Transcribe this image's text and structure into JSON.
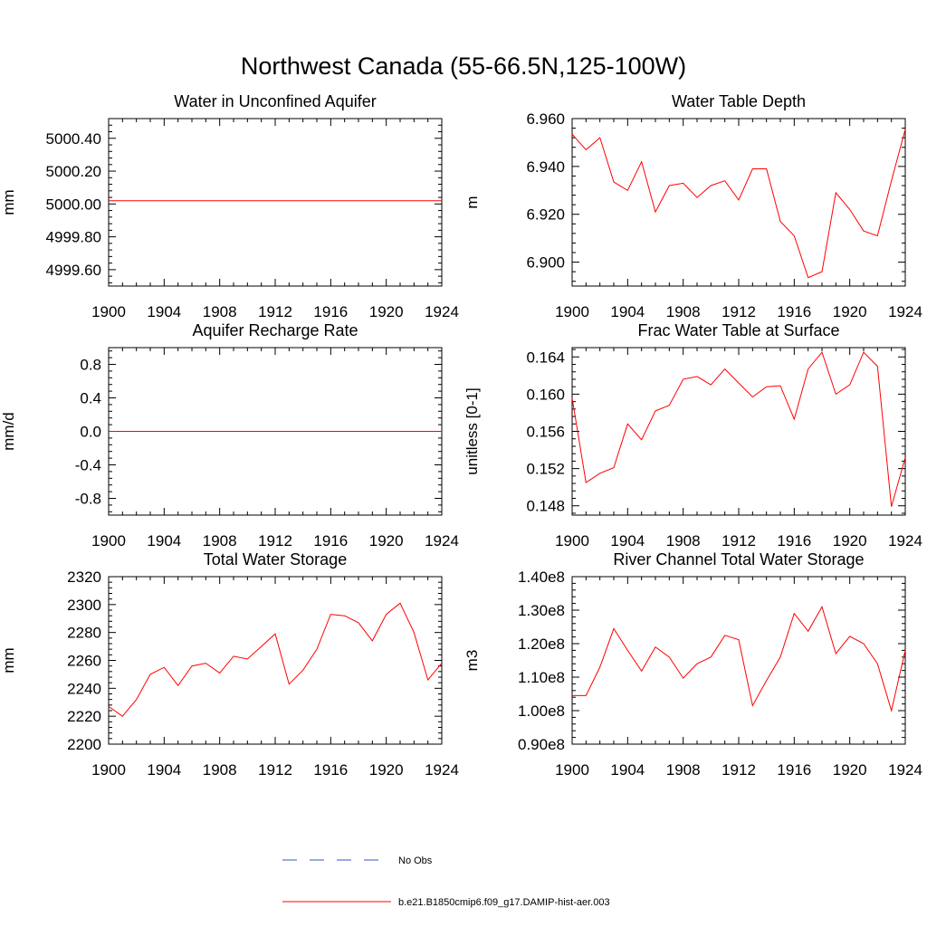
{
  "main_title": "Northwest Canada (55-66.5N,125-100W)",
  "colors": {
    "model": "#ff0000",
    "obs": "#3355cc",
    "frame": "#000000"
  },
  "legend": {
    "obs_label": "No Obs",
    "model_label": "b.e21.B1850cmip6.f09_g17.DAMIP-hist-aer.003"
  },
  "chart_data": [
    {
      "type": "line",
      "title": "Water in Unconfined Aquifer",
      "ylabel": "mm",
      "xlim": [
        1900,
        1924
      ],
      "ylim": [
        4999.5,
        5000.52
      ],
      "x_ticks": [
        1900,
        1904,
        1908,
        1912,
        1916,
        1920,
        1924
      ],
      "x_tick_labels": [
        "1900",
        "1904",
        "1908",
        "1912",
        "1916",
        "1920",
        "1924"
      ],
      "y_ticks": [
        4999.6,
        4999.8,
        5000.0,
        5000.2,
        5000.4
      ],
      "y_tick_labels": [
        "4999.60",
        "4999.80",
        "5000.00",
        "5000.20",
        "5000.40"
      ],
      "series": [
        {
          "x": [
            1900,
            1901,
            1902,
            1903,
            1904,
            1905,
            1906,
            1907,
            1908,
            1909,
            1910,
            1911,
            1912,
            1913,
            1914,
            1915,
            1916,
            1917,
            1918,
            1919,
            1920,
            1921,
            1922,
            1923,
            1924
          ],
          "values": [
            5000.02,
            5000.02,
            5000.02,
            5000.02,
            5000.02,
            5000.02,
            5000.02,
            5000.02,
            5000.02,
            5000.02,
            5000.02,
            5000.02,
            5000.02,
            5000.02,
            5000.02,
            5000.02,
            5000.02,
            5000.02,
            5000.02,
            5000.02,
            5000.02,
            5000.02,
            5000.02,
            5000.02,
            5000.02
          ]
        }
      ]
    },
    {
      "type": "line",
      "title": "Water Table Depth",
      "ylabel": "m",
      "xlim": [
        1900,
        1924
      ],
      "ylim": [
        6.89,
        6.96
      ],
      "x_ticks": [
        1900,
        1904,
        1908,
        1912,
        1916,
        1920,
        1924
      ],
      "x_tick_labels": [
        "1900",
        "1904",
        "1908",
        "1912",
        "1916",
        "1920",
        "1924"
      ],
      "y_ticks": [
        6.9,
        6.92,
        6.94,
        6.96
      ],
      "y_tick_labels": [
        "6.900",
        "6.920",
        "6.940",
        "6.960"
      ],
      "series": [
        {
          "x": [
            1900,
            1901,
            1902,
            1903,
            1904,
            1905,
            1906,
            1907,
            1908,
            1909,
            1910,
            1911,
            1912,
            1913,
            1914,
            1915,
            1916,
            1917,
            1918,
            1919,
            1920,
            1921,
            1922,
            1923,
            1924
          ],
          "values": [
            6.9535,
            6.947,
            6.952,
            6.9335,
            6.93,
            6.942,
            6.921,
            6.932,
            6.933,
            6.927,
            6.932,
            6.934,
            6.926,
            6.939,
            6.939,
            6.917,
            6.911,
            6.8935,
            6.896,
            6.929,
            6.922,
            6.913,
            6.911,
            6.934,
            6.9555
          ]
        }
      ]
    },
    {
      "type": "line",
      "title": "Aquifer Recharge Rate",
      "ylabel": "mm/d",
      "xlim": [
        1900,
        1924
      ],
      "ylim": [
        -1.0,
        1.0
      ],
      "x_ticks": [
        1900,
        1904,
        1908,
        1912,
        1916,
        1920,
        1924
      ],
      "x_tick_labels": [
        "1900",
        "1904",
        "1908",
        "1912",
        "1916",
        "1920",
        "1924"
      ],
      "y_ticks": [
        -0.8,
        -0.4,
        0.0,
        0.4,
        0.8
      ],
      "y_tick_labels": [
        "-0.8",
        "-0.4",
        "0.0",
        "0.4",
        "0.8"
      ],
      "series": [
        {
          "x": [
            1900,
            1901,
            1902,
            1903,
            1904,
            1905,
            1906,
            1907,
            1908,
            1909,
            1910,
            1911,
            1912,
            1913,
            1914,
            1915,
            1916,
            1917,
            1918,
            1919,
            1920,
            1921,
            1922,
            1923,
            1924
          ],
          "values": [
            0,
            0,
            0,
            0,
            0,
            0,
            0,
            0,
            0,
            0,
            0,
            0,
            0,
            0,
            0,
            0,
            0,
            0,
            0,
            0,
            0,
            0,
            0,
            0,
            0
          ]
        }
      ]
    },
    {
      "type": "line",
      "title": "Frac Water Table at Surface",
      "ylabel": "unitless [0-1]",
      "xlim": [
        1900,
        1924
      ],
      "ylim": [
        0.147,
        0.165
      ],
      "x_ticks": [
        1900,
        1904,
        1908,
        1912,
        1916,
        1920,
        1924
      ],
      "x_tick_labels": [
        "1900",
        "1904",
        "1908",
        "1912",
        "1916",
        "1920",
        "1924"
      ],
      "y_ticks": [
        0.148,
        0.152,
        0.156,
        0.16,
        0.164
      ],
      "y_tick_labels": [
        "0.148",
        "0.152",
        "0.156",
        "0.160",
        "0.164"
      ],
      "series": [
        {
          "x": [
            1900,
            1901,
            1902,
            1903,
            1904,
            1905,
            1906,
            1907,
            1908,
            1909,
            1910,
            1911,
            1912,
            1913,
            1914,
            1915,
            1916,
            1917,
            1918,
            1919,
            1920,
            1921,
            1922,
            1923,
            1924
          ],
          "values": [
            0.1596,
            0.1505,
            0.1515,
            0.1521,
            0.1568,
            0.1551,
            0.1582,
            0.1588,
            0.1616,
            0.1619,
            0.161,
            0.1627,
            0.1612,
            0.1597,
            0.1608,
            0.1609,
            0.1573,
            0.1627,
            0.1645,
            0.16,
            0.161,
            0.1645,
            0.163,
            0.1479,
            0.1532
          ]
        }
      ]
    },
    {
      "type": "line",
      "title": "Total Water Storage",
      "ylabel": "mm",
      "xlim": [
        1900,
        1924
      ],
      "ylim": [
        2200,
        2320
      ],
      "x_ticks": [
        1900,
        1904,
        1908,
        1912,
        1916,
        1920,
        1924
      ],
      "x_tick_labels": [
        "1900",
        "1904",
        "1908",
        "1912",
        "1916",
        "1920",
        "1924"
      ],
      "y_ticks": [
        2200,
        2220,
        2240,
        2260,
        2280,
        2300,
        2320
      ],
      "y_tick_labels": [
        "2200",
        "2220",
        "2240",
        "2260",
        "2280",
        "2300",
        "2320"
      ],
      "series": [
        {
          "x": [
            1900,
            1901,
            1902,
            1903,
            1904,
            1905,
            1906,
            1907,
            1908,
            1909,
            1910,
            1911,
            1912,
            1913,
            1914,
            1915,
            1916,
            1917,
            1918,
            1919,
            1920,
            1921,
            1922,
            1923,
            1924
          ],
          "values": [
            2227,
            2220,
            2232,
            2250,
            2255,
            2242,
            2256,
            2258,
            2251,
            2263,
            2261,
            2270,
            2279,
            2243,
            2253,
            2268,
            2293,
            2292,
            2287,
            2274,
            2293,
            2301,
            2280,
            2246,
            2258
          ]
        }
      ]
    },
    {
      "type": "line",
      "title": "River Channel Total Water Storage",
      "ylabel": "m3",
      "xlim": [
        1900,
        1924
      ],
      "ylim": [
        90000000.0,
        140000000.0
      ],
      "x_ticks": [
        1900,
        1904,
        1908,
        1912,
        1916,
        1920,
        1924
      ],
      "x_tick_labels": [
        "1900",
        "1904",
        "1908",
        "1912",
        "1916",
        "1920",
        "1924"
      ],
      "y_ticks": [
        90000000.0,
        100000000.0,
        110000000.0,
        120000000.0,
        130000000.0,
        140000000.0
      ],
      "y_tick_labels": [
        "0.90e8",
        "1.00e8",
        "1.10e8",
        "1.20e8",
        "1.30e8",
        "1.40e8"
      ],
      "series": [
        {
          "x": [
            1900,
            1901,
            1902,
            1903,
            1904,
            1905,
            1906,
            1907,
            1908,
            1909,
            1910,
            1911,
            1912,
            1913,
            1914,
            1915,
            1916,
            1917,
            1918,
            1919,
            1920,
            1921,
            1922,
            1923,
            1924
          ],
          "values": [
            104500000.0,
            104500000.0,
            113000000.0,
            124500000.0,
            118000000.0,
            111800000.0,
            119000000.0,
            116000000.0,
            109700000.0,
            114000000.0,
            116000000.0,
            122500000.0,
            121200000.0,
            101500000.0,
            109000000.0,
            116000000.0,
            129000000.0,
            123700000.0,
            131000000.0,
            117000000.0,
            122200000.0,
            120000000.0,
            114000000.0,
            100000000.0,
            118000000.0
          ]
        }
      ]
    }
  ]
}
